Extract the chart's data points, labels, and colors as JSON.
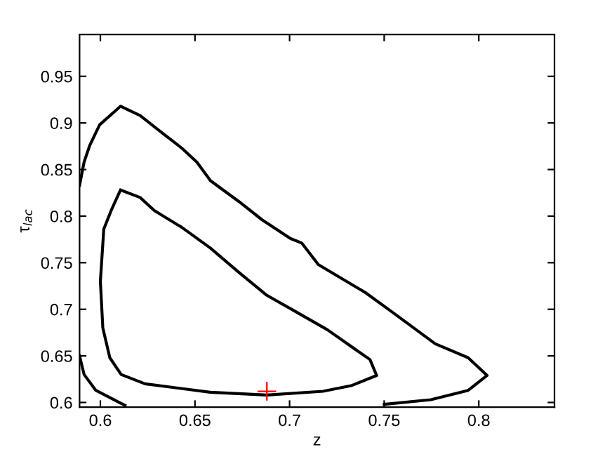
{
  "chart_data": {
    "type": "line",
    "xlabel": "z",
    "ylabel": "τ$_{lac}$",
    "xlim": [
      0.589,
      0.84
    ],
    "ylim": [
      0.595,
      0.995
    ],
    "xticks": [
      0.6,
      0.65,
      0.7,
      0.75,
      0.8
    ],
    "yticks": [
      0.6,
      0.65,
      0.7,
      0.75,
      0.8,
      0.85,
      0.9,
      0.95
    ],
    "grid": false,
    "legend": false,
    "series": [
      {
        "color": "#000000",
        "line_style": "solid",
        "marker": "none",
        "x": [
          0.589,
          0.5914,
          0.5944,
          0.5996,
          0.6107,
          0.621,
          0.6335,
          0.643,
          0.651,
          0.6582,
          0.673,
          0.6855,
          0.7004,
          0.7065,
          0.7152,
          0.74,
          0.7536,
          0.777,
          0.7944,
          0.8044,
          0.7944,
          0.7747,
          0.75,
          null,
          0.613,
          0.611,
          0.5976,
          0.5914,
          0.589
        ],
        "values": [
          0.833,
          0.858,
          0.876,
          0.898,
          0.918,
          0.908,
          0.888,
          0.873,
          0.858,
          0.838,
          0.816,
          0.796,
          0.776,
          0.771,
          0.748,
          0.718,
          0.698,
          0.663,
          0.648,
          0.629,
          0.613,
          0.603,
          0.598,
          null,
          0.597,
          0.599,
          0.613,
          0.63,
          0.65
        ]
      },
      {
        "color": "#000000",
        "line_style": "solid",
        "marker": "none",
        "x": [
          0.6107,
          0.621,
          0.6285,
          0.643,
          0.658,
          0.673,
          0.688,
          0.7028,
          0.72,
          0.7425,
          0.746,
          0.7325,
          0.7177,
          0.688,
          0.658,
          0.6236,
          0.611,
          0.605,
          0.6013,
          0.6,
          0.6018,
          0.6057,
          0.6104
        ],
        "values": [
          0.828,
          0.82,
          0.806,
          0.788,
          0.766,
          0.74,
          0.715,
          0.698,
          0.678,
          0.646,
          0.629,
          0.618,
          0.612,
          0.608,
          0.611,
          0.62,
          0.63,
          0.648,
          0.68,
          0.73,
          0.786,
          0.806,
          0.827
        ]
      },
      {
        "type": "scatter",
        "color": "#ff0000",
        "marker": "cross",
        "x": [
          0.688
        ],
        "values": [
          0.612
        ]
      }
    ]
  }
}
